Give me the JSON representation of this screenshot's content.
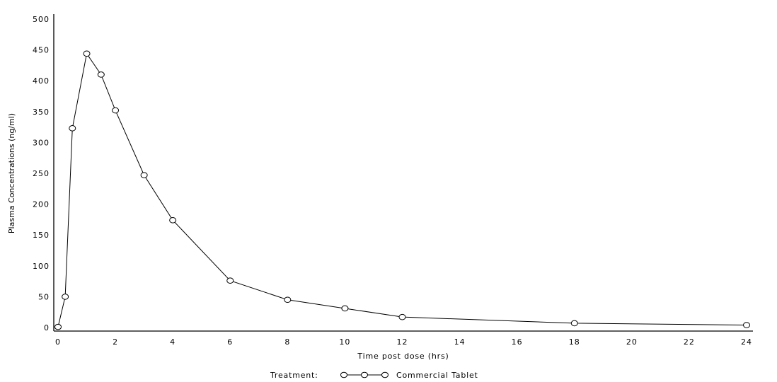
{
  "chart_data": {
    "type": "line",
    "title": "",
    "xlabel": "Time post dose (hrs)",
    "ylabel": "Plasma Concentrations (ng/ml)",
    "xlim": [
      0,
      24
    ],
    "ylim": [
      0,
      500
    ],
    "xticks": [
      "0",
      "2",
      "4",
      "6",
      "8",
      "10",
      "12",
      "14",
      "16",
      "18",
      "20",
      "22",
      "24"
    ],
    "yticks": [
      "0",
      "50",
      "100",
      "150",
      "200",
      "250",
      "300",
      "350",
      "400",
      "450",
      "500"
    ],
    "grid": false,
    "legend": {
      "title": "Treatment:",
      "placement": "bottom-center"
    },
    "series": [
      {
        "name": "Commercial Tablet",
        "marker": "open-circle",
        "color": "#000000",
        "x": [
          0,
          0.25,
          0.5,
          1,
          1.5,
          2,
          3,
          4,
          6,
          8,
          10,
          12,
          18,
          24
        ],
        "y": [
          1,
          50,
          323,
          444,
          410,
          352,
          247,
          174,
          76,
          45,
          31,
          17,
          7,
          4
        ]
      }
    ]
  }
}
